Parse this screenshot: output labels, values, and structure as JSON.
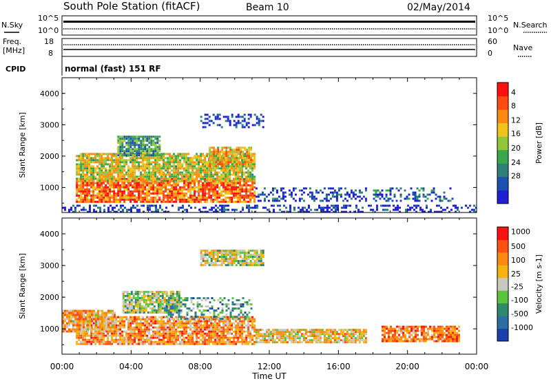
{
  "header": {
    "title": "South Pole Station (fitACF)",
    "beam": "Beam 10",
    "date": "02/May/2014"
  },
  "strip_panels": {
    "nsky": {
      "label": "N.Sky",
      "ticks_left": [
        "10^5",
        "10^0"
      ]
    },
    "nsearch": {
      "label": "N.Search",
      "ticks_right": [
        "10^5",
        "10^0"
      ]
    },
    "freq": {
      "label_line1": "Freq.",
      "label_line2": "[MHz]",
      "ticks_left": [
        "18",
        "8"
      ]
    },
    "nave": {
      "label": "Nave",
      "ticks_right": [
        "60",
        "0"
      ]
    },
    "cpid": {
      "label": "CPID",
      "value": "normal (fast) 151 RF"
    }
  },
  "x_axis": {
    "label": "Time UT",
    "ticks": [
      "00:00",
      "04:00",
      "08:00",
      "12:00",
      "16:00",
      "20:00",
      "00:00"
    ]
  },
  "chart_data": [
    {
      "type": "heatmap",
      "panel": "power",
      "ylabel": "Slant Range [km]",
      "yticks": [
        "1000",
        "2000",
        "3000",
        "4000"
      ],
      "ylim": [
        200,
        4500
      ],
      "xlim_hours": [
        0,
        24
      ],
      "colorbar": {
        "label": "Power [dB]",
        "ticks": [
          "4",
          "8",
          "12",
          "16",
          "20",
          "24",
          "28"
        ],
        "colors": [
          "#1f1fd6",
          "#1c4fb0",
          "#2e7f7a",
          "#3aa84a",
          "#90c83a",
          "#f2c21a",
          "#ff8a12",
          "#ff4a10",
          "#ff1010"
        ]
      },
      "regions": [
        {
          "t": [
            0.8,
            11.2
          ],
          "r": [
            550,
            1300
          ],
          "level": 0.8
        },
        {
          "t": [
            0.8,
            11.2
          ],
          "r": [
            1200,
            2100
          ],
          "level": 0.55
        },
        {
          "t": [
            3.2,
            5.6
          ],
          "r": [
            2000,
            2650
          ],
          "level": 0.35
        },
        {
          "t": [
            8.5,
            11.0
          ],
          "r": [
            1700,
            2300
          ],
          "level": 0.65
        },
        {
          "t": [
            11.2,
            17.6
          ],
          "r": [
            600,
            1000
          ],
          "level": 0.12
        },
        {
          "t": [
            18.0,
            22.6
          ],
          "r": [
            600,
            1000
          ],
          "level": 0.2
        },
        {
          "t": [
            0.0,
            24.0
          ],
          "r": [
            200,
            450
          ],
          "level": 0.08
        },
        {
          "t": [
            8.0,
            11.6
          ],
          "r": [
            2900,
            3350
          ],
          "level": 0.1
        }
      ]
    },
    {
      "type": "heatmap",
      "panel": "velocity",
      "ylabel": "Slant Range [km]",
      "yticks": [
        "1000",
        "2000",
        "3000",
        "4000"
      ],
      "ylim": [
        200,
        4500
      ],
      "xlim_hours": [
        0,
        24
      ],
      "colorbar": {
        "label": "Velocity [m s-1]",
        "ticks": [
          "1000",
          "500",
          "100",
          "25",
          "-25",
          "-100",
          "-500",
          "-1000"
        ],
        "colors": [
          "#1a3fb0",
          "#2a6fa0",
          "#2e8a6a",
          "#5cc43a",
          "#c8c8c0",
          "#f5b30f",
          "#ff8a12",
          "#ff5010",
          "#ff1010"
        ]
      },
      "regions": [
        {
          "t": [
            0.8,
            11.2
          ],
          "r": [
            550,
            1400
          ],
          "level": 0.7
        },
        {
          "t": [
            0.0,
            3.0
          ],
          "r": [
            900,
            1600
          ],
          "level": 0.65
        },
        {
          "t": [
            3.5,
            6.8
          ],
          "r": [
            1500,
            2200
          ],
          "level": 0.45
        },
        {
          "t": [
            6.0,
            11.0
          ],
          "r": [
            1300,
            2000
          ],
          "level": 0.3
        },
        {
          "t": [
            11.2,
            17.6
          ],
          "r": [
            600,
            1000
          ],
          "level": 0.6
        },
        {
          "t": [
            18.5,
            23.0
          ],
          "r": [
            600,
            1100
          ],
          "level": 0.75
        },
        {
          "t": [
            8.0,
            11.6
          ],
          "r": [
            3000,
            3500
          ],
          "level": 0.5
        }
      ]
    }
  ]
}
